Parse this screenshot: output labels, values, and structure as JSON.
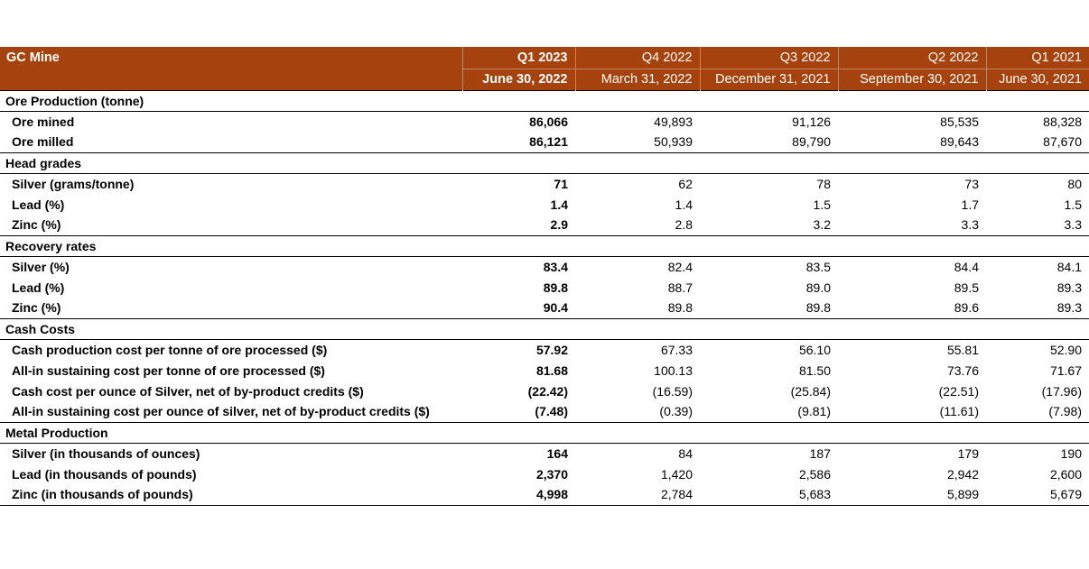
{
  "colors": {
    "header_bg": "#A5420D",
    "header_text": "#FFFFFF"
  },
  "table": {
    "corner_label": "GC Mine",
    "columns": [
      {
        "quarter": "Q1 2023",
        "date": "June 30, 2022",
        "emphasis": true
      },
      {
        "quarter": "Q4 2022",
        "date": "March 31, 2022",
        "emphasis": false
      },
      {
        "quarter": "Q3 2022",
        "date": "December 31, 2021",
        "emphasis": false
      },
      {
        "quarter": "Q2 2022",
        "date": "September 30, 2021",
        "emphasis": false
      },
      {
        "quarter": "Q1 2021",
        "date": "June 30, 2021",
        "emphasis": false
      }
    ],
    "sections": [
      {
        "title": "Ore Production (tonne)",
        "rows": [
          {
            "label": "Ore mined",
            "values": [
              "86,066",
              "49,893",
              "91,126",
              "85,535",
              "88,328"
            ]
          },
          {
            "label": "Ore milled",
            "values": [
              "86,121",
              "50,939",
              "89,790",
              "89,643",
              "87,670"
            ]
          }
        ]
      },
      {
        "title": "Head grades",
        "rows": [
          {
            "label": "Silver (grams/tonne)",
            "values": [
              "71",
              "62",
              "78",
              "73",
              "80"
            ]
          },
          {
            "label": "Lead (%)",
            "values": [
              "1.4",
              "1.4",
              "1.5",
              "1.7",
              "1.5"
            ]
          },
          {
            "label": "Zinc (%)",
            "values": [
              "2.9",
              "2.8",
              "3.2",
              "3.3",
              "3.3"
            ]
          }
        ]
      },
      {
        "title": "Recovery rates",
        "rows": [
          {
            "label": "Silver (%)",
            "values": [
              "83.4",
              "82.4",
              "83.5",
              "84.4",
              "84.1"
            ]
          },
          {
            "label": "Lead (%)",
            "values": [
              "89.8",
              "88.7",
              "89.0",
              "89.5",
              "89.3"
            ]
          },
          {
            "label": "Zinc (%)",
            "values": [
              "90.4",
              "89.8",
              "89.8",
              "89.6",
              "89.3"
            ]
          }
        ]
      },
      {
        "title": "Cash Costs",
        "rows": [
          {
            "label": "Cash production cost per tonne of ore processed ($)",
            "values": [
              "57.92",
              "67.33",
              "56.10",
              "55.81",
              "52.90"
            ]
          },
          {
            "label": "All-in sustaining cost per tonne of ore processed ($)",
            "values": [
              "81.68",
              "100.13",
              "81.50",
              "73.76",
              "71.67"
            ]
          },
          {
            "label": "Cash cost per ounce of Silver, net of by-product credits ($)",
            "values": [
              "(22.42)",
              "(16.59)",
              "(25.84)",
              "(22.51)",
              "(17.96)"
            ]
          },
          {
            "label": "All-in sustaining cost per ounce of silver, net of by-product credits ($)",
            "values": [
              "(7.48)",
              "(0.39)",
              "(9.81)",
              "(11.61)",
              "(7.98)"
            ]
          }
        ]
      },
      {
        "title": "Metal Production",
        "rows": [
          {
            "label": "Silver (in thousands of ounces)",
            "values": [
              "164",
              "84",
              "187",
              "179",
              "190"
            ]
          },
          {
            "label": "Lead (in thousands of pounds)",
            "values": [
              "2,370",
              "1,420",
              "2,586",
              "2,942",
              "2,600"
            ]
          },
          {
            "label": "Zinc (in thousands of pounds)",
            "values": [
              "4,998",
              "2,784",
              "5,683",
              "5,899",
              "5,679"
            ]
          }
        ]
      }
    ]
  }
}
